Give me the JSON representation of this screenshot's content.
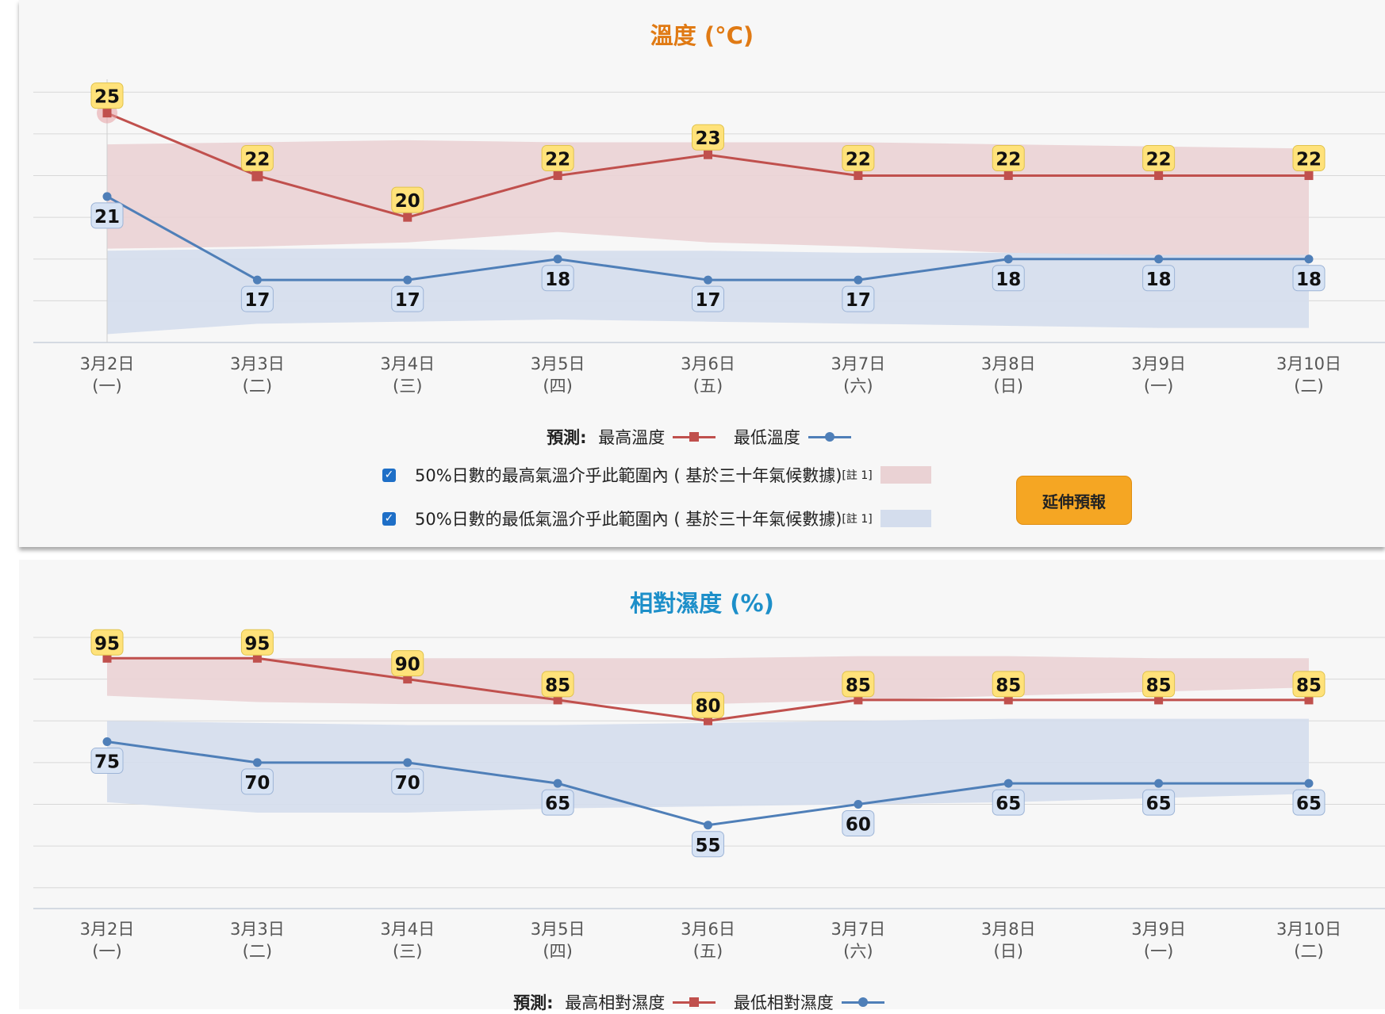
{
  "temperature": {
    "title": "溫度 (°C)",
    "legend": {
      "prefix": "預測:",
      "max_label": "最高溫度",
      "min_label": "最低溫度"
    },
    "bands": [
      {
        "checked": true,
        "text": "50%日數的最高氣溫介乎此範圍內 ( 基於三十年氣候數據)",
        "note": "[註 1]",
        "color": "#ead2d4"
      },
      {
        "checked": true,
        "text": "50%日數的最低氣溫介乎此範圍內 ( 基於三十年氣候數據)",
        "note": "[註 1]",
        "color": "#d4dded"
      }
    ],
    "extend_button": "延伸預報"
  },
  "humidity": {
    "title": "相對濕度 (%)",
    "legend": {
      "prefix": "預測:",
      "max_label": "最高相對濕度",
      "min_label": "最低相對濕度"
    }
  },
  "chart_data": [
    {
      "type": "line",
      "title": "溫度 (°C)",
      "x": [
        "3月2日",
        "3月3日",
        "3月4日",
        "3月5日",
        "3月6日",
        "3月7日",
        "3月8日",
        "3月9日",
        "3月10日"
      ],
      "x_sub": [
        "(一)",
        "(二)",
        "(三)",
        "(四)",
        "(五)",
        "(六)",
        "(日)",
        "(一)",
        "(二)"
      ],
      "ylim": [
        14,
        27
      ],
      "gridlines": [
        14,
        16,
        18,
        20,
        22,
        24,
        26
      ],
      "series": [
        {
          "name": "最高溫度",
          "color": "#c0504d",
          "marker": "square",
          "values": [
            25,
            22,
            20,
            22,
            23,
            22,
            22,
            22,
            22
          ]
        },
        {
          "name": "最低溫度",
          "color": "#4f7fb8",
          "marker": "circle",
          "values": [
            21,
            17,
            17,
            18,
            17,
            17,
            18,
            18,
            18
          ]
        }
      ],
      "bands": [
        {
          "color": "#ead2d4",
          "upper": [
            23.5,
            23.6,
            23.7,
            23.6,
            23.6,
            23.6,
            23.5,
            23.4,
            23.3
          ],
          "lower": [
            18.5,
            18.6,
            18.8,
            19.3,
            18.8,
            18.6,
            18.3,
            18.1,
            18.0
          ]
        },
        {
          "color": "#d4dded",
          "upper": [
            18.4,
            18.5,
            18.5,
            18.4,
            18.4,
            18.3,
            18.3,
            18.2,
            18.2
          ],
          "lower": [
            14.4,
            14.9,
            15.0,
            15.1,
            15.0,
            14.9,
            14.8,
            14.7,
            14.7
          ]
        }
      ],
      "legend_position": "bottom",
      "grid": true
    },
    {
      "type": "line",
      "title": "相對濕度 (%)",
      "x": [
        "3月2日",
        "3月3日",
        "3月4日",
        "3月5日",
        "3月6日",
        "3月7日",
        "3月8日",
        "3月9日",
        "3月10日"
      ],
      "x_sub": [
        "(一)",
        "(二)",
        "(三)",
        "(四)",
        "(五)",
        "(六)",
        "(日)",
        "(一)",
        "(二)"
      ],
      "ylim": [
        35,
        100
      ],
      "gridlines": [
        40,
        50,
        60,
        70,
        80,
        90,
        100
      ],
      "series": [
        {
          "name": "最高相對濕度",
          "color": "#c0504d",
          "marker": "square",
          "values": [
            95,
            95,
            90,
            85,
            80,
            85,
            85,
            85,
            85
          ]
        },
        {
          "name": "最低相對濕度",
          "color": "#4f7fb8",
          "marker": "circle",
          "values": [
            75,
            70,
            70,
            65,
            55,
            60,
            65,
            65,
            65
          ]
        }
      ],
      "bands": [
        {
          "color": "#ead2d4",
          "upper": [
            95,
            95,
            95,
            95,
            95,
            95.5,
            95.5,
            95,
            95
          ],
          "lower": [
            86,
            84.5,
            84,
            84,
            84,
            85,
            86,
            87,
            88
          ]
        },
        {
          "color": "#d4dded",
          "upper": [
            80,
            79.5,
            79,
            79,
            79.5,
            80,
            80.5,
            80.5,
            80.5
          ],
          "lower": [
            60.5,
            58,
            58,
            59,
            59.5,
            60,
            60.5,
            61.5,
            62.5
          ]
        }
      ],
      "legend_position": "bottom",
      "grid": true
    }
  ]
}
